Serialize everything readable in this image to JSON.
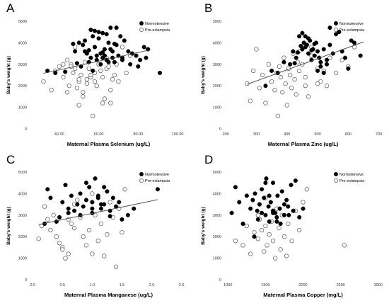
{
  "panels": [
    {
      "letter": "A",
      "chart_data": {
        "type": "scatter",
        "xlabel": "Maternal Plasma Selenium (ug/L)",
        "ylabel": "Baby's weight (g)",
        "xlim": [
          25,
          105
        ],
        "ylim": [
          0,
          5000
        ],
        "xticks": [
          "40.00",
          "60.00",
          "80.00",
          "100.00"
        ],
        "xtick_values": [
          40,
          60,
          80,
          100
        ],
        "yticks": [
          "0",
          "1000",
          "2000",
          "3000",
          "4000",
          "5000"
        ],
        "ytick_values": [
          0,
          1000,
          2000,
          3000,
          4000,
          5000
        ],
        "legend": [
          "Normotensive",
          "Pre-eclampsia"
        ],
        "legend_position": "top-right",
        "fit_line": [
          [
            32,
            2580
          ],
          [
            85,
            3650
          ]
        ],
        "series": [
          {
            "name": "Normotensive",
            "x": [
              34,
              38,
              43,
              47,
              48,
              50,
              52,
              53,
              54,
              55,
              56,
              57,
              58,
              59,
              60,
              61,
              62,
              63,
              64,
              65,
              66,
              67,
              68,
              69,
              70,
              71,
              72,
              73,
              75,
              77,
              79,
              81,
              83,
              85,
              91,
              49,
              51,
              55,
              57,
              59,
              61,
              63,
              65,
              67,
              69,
              56,
              58,
              60,
              62,
              64,
              66,
              53,
              58,
              62,
              68,
              72,
              76,
              80,
              84
            ],
            "y": [
              2700,
              2600,
              2650,
              3950,
              3600,
              4000,
              3900,
              4100,
              3500,
              3650,
              3300,
              4300,
              3800,
              3400,
              4200,
              3500,
              3300,
              3700,
              3200,
              4000,
              3700,
              3600,
              3100,
              3900,
              3400,
              4300,
              3300,
              4100,
              3600,
              3500,
              3400,
              3200,
              3800,
              3700,
              2600,
              3050,
              2900,
              3100,
              2700,
              3200,
              3000,
              3400,
              3100,
              3300,
              4700,
              4600,
              4550,
              4500,
              4450,
              4400,
              4700,
              3600,
              3800,
              3550,
              3950,
              3200,
              3000,
              2900,
              3300
            ]
          },
          {
            "name": "Pre-eclampsia",
            "x": [
              32,
              36,
              38,
              40,
              42,
              44,
              45,
              46,
              47,
              48,
              49,
              50,
              51,
              52,
              53,
              54,
              55,
              56,
              57,
              58,
              59,
              60,
              61,
              62,
              63,
              64,
              65,
              66,
              67,
              68,
              69,
              70,
              72,
              74,
              76,
              44,
              46,
              48,
              50,
              52,
              54,
              56,
              58,
              60,
              62,
              64,
              66,
              42,
              50
            ],
            "y": [
              2200,
              1800,
              2700,
              2900,
              2400,
              1700,
              2000,
              3000,
              2600,
              3800,
              1900,
              2200,
              2500,
              1500,
              3100,
              2300,
              2800,
              2400,
              600,
              2600,
              2000,
              3000,
              2700,
              1200,
              1400,
              2800,
              2900,
              1200,
              2300,
              2500,
              3000,
              2200,
              3800,
              2600,
              3400,
              3200,
              2900,
              2800,
              1100,
              1700,
              2100,
              2500,
              2200,
              3000,
              2400,
              3300,
              1800,
              3000,
              2300
            ]
          }
        ]
      }
    },
    {
      "letter": "B",
      "chart_data": {
        "type": "scatter",
        "xlabel": "Maternal Plasma Zinc (ug/L)",
        "ylabel": "Baby's weight (g)",
        "xlim": [
          195,
          710
        ],
        "ylim": [
          0,
          5000
        ],
        "xticks": [
          "200",
          "300",
          "400",
          "500",
          "600",
          "700"
        ],
        "xtick_values": [
          200,
          300,
          400,
          500,
          600,
          700
        ],
        "yticks": [
          "0",
          "1000",
          "2000",
          "3000",
          "4000",
          "5000"
        ],
        "ytick_values": [
          0,
          1000,
          2000,
          3000,
          4000,
          5000
        ],
        "legend": [
          "Normotensive",
          "Pre-eclampsia"
        ],
        "legend_position": "top-right",
        "fit_line": [
          [
            270,
            2070
          ],
          [
            650,
            4040
          ]
        ],
        "series": [
          {
            "name": "Normotensive",
            "x": [
              330,
              350,
              370,
              390,
              410,
              420,
              430,
              440,
              450,
              455,
              460,
              465,
              470,
              475,
              480,
              485,
              490,
              495,
              500,
              505,
              510,
              520,
              530,
              540,
              550,
              560,
              570,
              580,
              590,
              600,
              610,
              620,
              640,
              460,
              470,
              480,
              490,
              500,
              510,
              520,
              530,
              540,
              450,
              445,
              435,
              425
            ],
            "y": [
              2000,
              2700,
              2600,
              3100,
              3000,
              3600,
              3300,
              4300,
              3700,
              4000,
              3800,
              3900,
              3500,
              4100,
              3200,
              3700,
              3400,
              4000,
              3600,
              3300,
              2900,
              3700,
              3200,
              3900,
              3500,
              4400,
              4500,
              3600,
              3300,
              2800,
              4100,
              4000,
              3400,
              4300,
              4200,
              3650,
              3950,
              2700,
              3100,
              2600,
              3000,
              4700,
              4450,
              3850,
              3550,
              3050
            ]
          },
          {
            "name": "Pre-eclampsia",
            "x": [
              270,
              280,
              290,
              300,
              310,
              320,
              330,
              340,
              350,
              360,
              365,
              370,
              375,
              380,
              385,
              390,
              395,
              400,
              405,
              410,
              415,
              420,
              425,
              430,
              435,
              440,
              450,
              460,
              470,
              480,
              500,
              510,
              520,
              530,
              540,
              560,
              580,
              600,
              620,
              440,
              460,
              480,
              500
            ],
            "y": [
              2100,
              1300,
              2700,
              3700,
              1900,
              2500,
              1200,
              3000,
              2200,
              1800,
              2600,
              600,
              2900,
              2400,
              1700,
              3300,
              2100,
              1100,
              2800,
              2500,
              1900,
              3500,
              2300,
              1600,
              3100,
              2700,
              3000,
              2000,
              1500,
              3400,
              2800,
              2200,
              2700,
              2000,
              3300,
              2600,
              3200,
              2900,
              3800,
              3600,
              2400,
              3800,
              2100
            ]
          }
        ]
      }
    },
    {
      "letter": "C",
      "chart_data": {
        "type": "scatter",
        "xlabel": "Maternal Plasma Manganese (ug/L)",
        "ylabel": "Baby's weight (g)",
        "xlim": [
          -0.05,
          2.6
        ],
        "ylim": [
          0,
          5000
        ],
        "xticks": [
          "0.0",
          "0.5",
          "1.0",
          "1.5",
          "2.0",
          "2.5"
        ],
        "xtick_values": [
          0,
          0.5,
          1,
          1.5,
          2,
          2.5
        ],
        "yticks": [
          "0",
          "1000",
          "2000",
          "3000",
          "4000",
          "5000"
        ],
        "ytick_values": [
          0,
          1000,
          2000,
          3000,
          4000,
          5000
        ],
        "legend": [
          "Normotensive",
          "Pre-eclampsia"
        ],
        "legend_position": "top-right",
        "fit_line": [
          [
            0.1,
            2560
          ],
          [
            2.1,
            3720
          ]
        ],
        "series": [
          {
            "name": "Normotensive",
            "x": [
              0.2,
              0.25,
              0.3,
              0.4,
              0.5,
              0.55,
              0.6,
              0.65,
              0.7,
              0.75,
              0.8,
              0.85,
              0.9,
              0.95,
              1.0,
              1.05,
              1.1,
              1.15,
              1.2,
              1.25,
              1.3,
              1.35,
              1.4,
              1.45,
              1.5,
              1.6,
              1.7,
              2.1,
              0.45,
              0.6,
              0.8,
              1.0,
              1.1,
              1.2,
              1.3,
              1.0,
              0.9,
              1.15
            ],
            "y": [
              2600,
              4200,
              3800,
              2700,
              3600,
              4400,
              3300,
              3900,
              3200,
              3500,
              4000,
              3400,
              3700,
              4300,
              3600,
              4700,
              3900,
              3300,
              3500,
              4100,
              3200,
              3800,
              3400,
              3600,
              2800,
              3000,
              3300,
              4200,
              2900,
              3100,
              3000,
              3100,
              3800,
              4300,
              2950,
              3300,
              4500,
              3500
            ]
          },
          {
            "name": "Pre-eclampsia",
            "x": [
              0.1,
              0.15,
              0.2,
              0.25,
              0.3,
              0.35,
              0.4,
              0.45,
              0.5,
              0.55,
              0.6,
              0.65,
              0.7,
              0.75,
              0.8,
              0.85,
              0.9,
              0.95,
              1.0,
              1.05,
              1.1,
              1.15,
              1.2,
              1.25,
              1.3,
              1.35,
              1.4,
              1.45,
              1.5,
              1.55,
              0.5,
              0.55,
              0.6,
              0.7,
              1.0
            ],
            "y": [
              1900,
              2500,
              3400,
              2800,
              2300,
              3000,
              2000,
              1700,
              1500,
              1000,
              1200,
              2600,
              2400,
              3700,
              2900,
              2000,
              1600,
              2300,
              4000,
              3000,
              1800,
              2600,
              1100,
              2100,
              3600,
              2900,
              600,
              3300,
              2200,
              4200,
              1400,
              1000,
              2800,
              3500,
              1200
            ]
          }
        ]
      }
    },
    {
      "letter": "D",
      "chart_data": {
        "type": "scatter",
        "xlabel": "Maternal Plasma Copper (mg/L)",
        "ylabel": "Baby's weight (g)",
        "xlim": [
          950,
          3050
        ],
        "ylim": [
          0,
          5000
        ],
        "xticks": [
          "1000",
          "1500",
          "2000",
          "2500",
          "3000"
        ],
        "xtick_values": [
          1000,
          1500,
          2000,
          2500,
          3000
        ],
        "yticks": [
          "0",
          "1000",
          "2000",
          "3000",
          "4000",
          "5000"
        ],
        "ytick_values": [
          0,
          1000,
          2000,
          3000,
          4000,
          5000
        ],
        "legend": [
          "Normotensive",
          "Pre-eclampsia"
        ],
        "legend_position": "top-right",
        "series": [
          {
            "name": "Normotensive",
            "x": [
              1050,
              1100,
              1150,
              1200,
              1250,
              1300,
              1330,
              1360,
              1390,
              1420,
              1450,
              1480,
              1510,
              1540,
              1570,
              1600,
              1630,
              1660,
              1690,
              1720,
              1750,
              1780,
              1810,
              1840,
              1870,
              1900,
              1950,
              2000,
              1400,
              1450,
              1500,
              1550,
              1600,
              1650,
              1700,
              1750,
              1800,
              1500,
              1550,
              1600,
              1650,
              1350
            ],
            "y": [
              3100,
              4300,
              3600,
              2600,
              3900,
              3300,
              3700,
              4000,
              3200,
              3500,
              4200,
              3800,
              4700,
              3400,
              3600,
              4500,
              3100,
              3900,
              3300,
              4100,
              3500,
              3700,
              3000,
              4400,
              3200,
              4600,
              2900,
              3300,
              2800,
              3100,
              3000,
              2700,
              3200,
              2900,
              2600,
              3000,
              3400,
              4500,
              3900,
              3100,
              2700,
              2000
            ]
          },
          {
            "name": "Pre-eclampsia",
            "x": [
              1100,
              1200,
              1250,
              1300,
              1350,
              1400,
              1420,
              1450,
              1480,
              1500,
              1520,
              1550,
              1580,
              1600,
              1630,
              1650,
              1680,
              1700,
              1720,
              1750,
              1780,
              1800,
              1850,
              1900,
              1950,
              2000,
              2050,
              2550,
              1400,
              1500
            ],
            "y": [
              1800,
              1600,
              2500,
              1200,
              2200,
              1900,
              2800,
              2300,
              1300,
              2500,
              1600,
              2100,
              2700,
              1800,
              1000,
              3300,
              2400,
              1400,
              3000,
              2000,
              1100,
              2600,
              1800,
              3200,
              2300,
              3600,
              4200,
              1600,
              3000,
              3800
            ]
          }
        ]
      }
    }
  ]
}
